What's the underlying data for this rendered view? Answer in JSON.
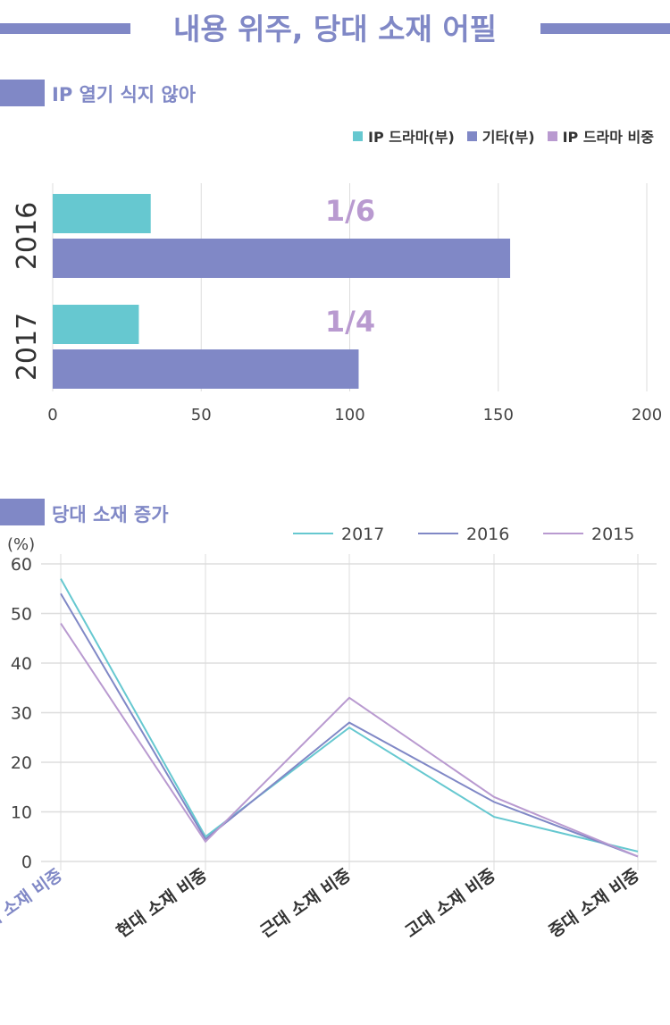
{
  "title": "내용 위주, 당대 소재 어필",
  "section1": {
    "title": "IP 열기 식지 않아"
  },
  "section2": {
    "title": "당대 소재 증가",
    "unit": "(%)"
  },
  "colors": {
    "teal": "#66c8d0",
    "purple": "#8088c6",
    "lilac": "#b99ad0"
  },
  "chart_data": [
    {
      "type": "bar",
      "orientation": "horizontal",
      "categories": [
        "2016",
        "2017"
      ],
      "series": [
        {
          "name": "IP 드라마(부)",
          "values": [
            33,
            29
          ]
        },
        {
          "name": "기타(부)",
          "values": [
            154,
            103
          ]
        }
      ],
      "legend": [
        "IP 드라마(부)",
        "기타(부)",
        "IP 드라마 비중"
      ],
      "annotations": [
        "1/6",
        "1/4"
      ],
      "xlim": [
        0,
        200
      ],
      "xticks": [
        "0",
        "50",
        "100",
        "150",
        "200"
      ],
      "legend_position": "top-right"
    },
    {
      "type": "line",
      "categories": [
        "당대 소재 비중",
        "현대 소재 비중",
        "근대 소재 비중",
        "고대 소재 비중",
        "중대 소재 비중"
      ],
      "series": [
        {
          "name": "2017",
          "values": [
            57,
            5,
            27,
            9,
            2
          ]
        },
        {
          "name": "2016",
          "values": [
            54,
            4.5,
            28,
            12,
            1
          ]
        },
        {
          "name": "2015",
          "values": [
            48,
            4,
            33,
            13,
            1
          ]
        }
      ],
      "ylim": [
        0,
        60
      ],
      "yticks": [
        "0",
        "10",
        "20",
        "30",
        "40",
        "50",
        "60"
      ],
      "ylabel": "(%)",
      "grid": true,
      "legend_position": "top-right"
    }
  ]
}
